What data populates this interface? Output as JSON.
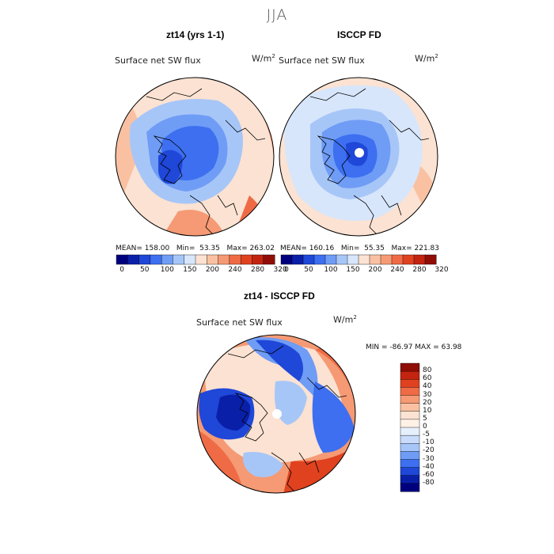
{
  "figure": {
    "title": "JJA"
  },
  "panels": [
    {
      "id": "model",
      "title": "zt14 (yrs 1-1)",
      "variable": "Surface net SW flux",
      "units": "W/m",
      "units_sup": "2",
      "stats": {
        "mean_label": "MEAN=",
        "mean": "158.00",
        "min_label": "Min=",
        "min": "53.35",
        "max_label": "Max=",
        "max": "263.02"
      }
    },
    {
      "id": "obs",
      "title": "ISCCP FD",
      "variable": "Surface net SW flux",
      "units": "W/m",
      "units_sup": "2",
      "stats": {
        "mean_label": "MEAN=",
        "mean": "160.16",
        "min_label": "Min=",
        "min": "55.35",
        "max_label": "Max=",
        "max": "221.83"
      }
    },
    {
      "id": "diff",
      "title": "zt14 - ISCCP FD",
      "variable": "Surface net SW flux",
      "units": "W/m",
      "units_sup": "2",
      "stats_text": "MIN = -86.97 MAX =  63.98"
    }
  ],
  "colorbar_top": {
    "colors": [
      "#00007f",
      "#0a1fa8",
      "#1f47d8",
      "#3d6ff0",
      "#6f9cf5",
      "#a7c6f8",
      "#d7e6fb",
      "#fbe2d2",
      "#f9c1a2",
      "#f59a74",
      "#ef6b45",
      "#e0421f",
      "#c32410",
      "#8f0d05"
    ],
    "tick_labels": [
      "0",
      "50",
      "100",
      "150",
      "200",
      "240",
      "280",
      "320"
    ]
  },
  "colorbar_diff": {
    "colors_top_to_bottom": [
      "#8f0d05",
      "#c32410",
      "#e0421f",
      "#ef6b45",
      "#f59a74",
      "#f9c1a2",
      "#fbe2d2",
      "#fff1e6",
      "#e6effc",
      "#c8dbfa",
      "#a7c6f8",
      "#6f9cf5",
      "#3d6ff0",
      "#1f47d8",
      "#0a1fa8",
      "#00007f"
    ],
    "tick_labels": [
      "80",
      "60",
      "40",
      "30",
      "20",
      "10",
      "5",
      "0",
      "-5",
      "-10",
      "-20",
      "-30",
      "-40",
      "-60",
      "-80"
    ]
  },
  "map_colors": {
    "deep_blue": "#1f47d8",
    "blue": "#3d6ff0",
    "mid_blue": "#6f9cf5",
    "light_blue": "#c8dbfa",
    "pale": "#fbe2d2",
    "light_orange": "#f9c1a2",
    "orange": "#f59a74",
    "red": "#e0421f",
    "land_outline": "#000000"
  }
}
